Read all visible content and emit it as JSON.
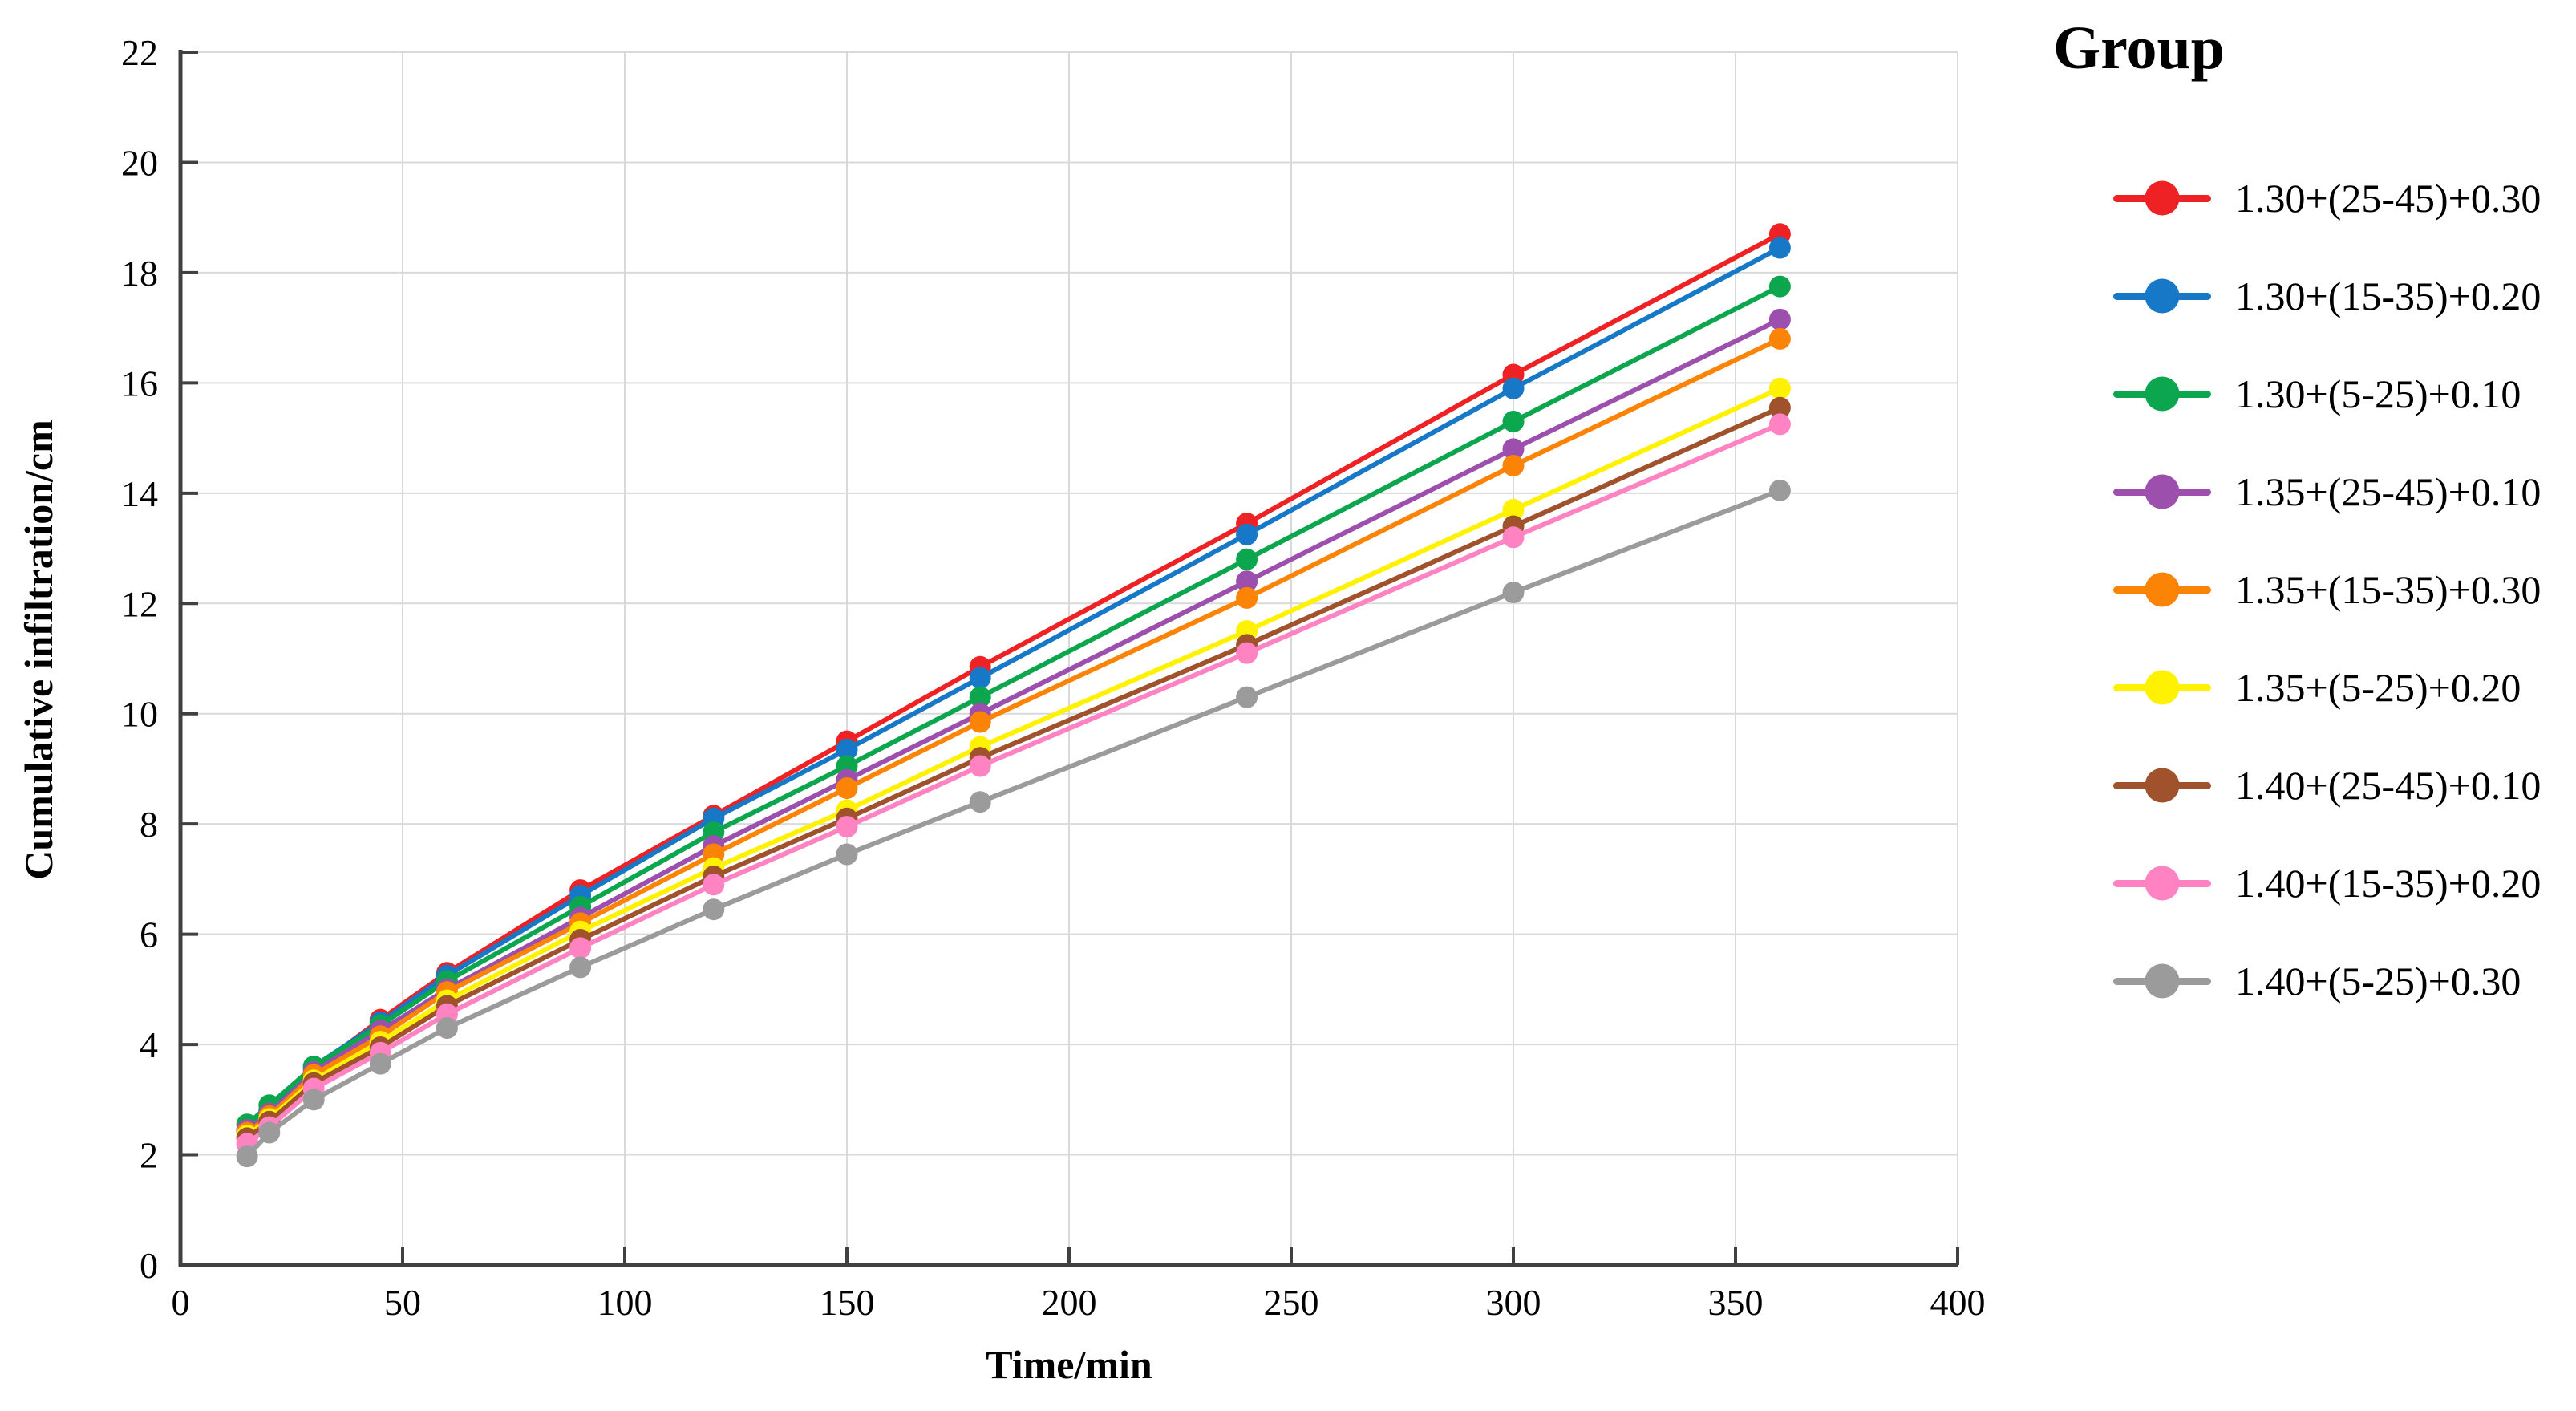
{
  "chart_data": {
    "type": "line",
    "title": "",
    "xlabel": "Time/min",
    "ylabel": "Cumulative infiltration/cm",
    "legend_title": "Group",
    "legend_position": "right",
    "grid": true,
    "grid_color": "#d9d9d9",
    "axis_color": "#404040",
    "text_color": "#000000",
    "xlim": [
      0,
      400
    ],
    "ylim": [
      0,
      22
    ],
    "x_ticks": [
      0,
      50,
      100,
      150,
      200,
      250,
      300,
      350,
      400
    ],
    "y_ticks": [
      0,
      2,
      4,
      6,
      8,
      10,
      12,
      14,
      16,
      18,
      20,
      22
    ],
    "x": [
      15,
      20,
      30,
      45,
      60,
      90,
      120,
      150,
      180,
      240,
      300,
      360
    ],
    "series": [
      {
        "name": "1.30+(25-45)+0.30",
        "color": "#ee2224",
        "values": [
          2.45,
          2.8,
          3.55,
          4.45,
          5.3,
          6.8,
          8.15,
          9.5,
          10.85,
          13.45,
          16.15,
          18.7
        ]
      },
      {
        "name": "1.30+(15-35)+0.20",
        "color": "#1878c8",
        "values": [
          2.45,
          2.8,
          3.6,
          4.4,
          5.25,
          6.7,
          8.1,
          9.35,
          10.65,
          13.25,
          15.9,
          18.45
        ]
      },
      {
        "name": "1.30+(5-25)+0.10",
        "color": "#0ca64e",
        "values": [
          2.55,
          2.9,
          3.6,
          4.35,
          5.15,
          6.5,
          7.85,
          9.05,
          10.3,
          12.8,
          15.3,
          17.75
        ]
      },
      {
        "name": "1.35+(25-45)+0.10",
        "color": "#9d4fae",
        "values": [
          2.45,
          2.75,
          3.5,
          4.25,
          5.0,
          6.3,
          7.6,
          8.8,
          10.0,
          12.4,
          14.8,
          17.15
        ]
      },
      {
        "name": "1.35+(15-35)+0.30",
        "color": "#fb8306",
        "values": [
          2.4,
          2.7,
          3.45,
          4.15,
          4.95,
          6.2,
          7.45,
          8.65,
          9.85,
          12.1,
          14.5,
          16.8
        ]
      },
      {
        "name": "1.35+(5-25)+0.20",
        "color": "#fff200",
        "values": [
          2.35,
          2.65,
          3.35,
          4.05,
          4.8,
          6.05,
          7.2,
          8.25,
          9.4,
          11.5,
          13.7,
          15.9
        ]
      },
      {
        "name": "1.40+(25-45)+0.10",
        "color": "#a0522d",
        "values": [
          2.3,
          2.6,
          3.3,
          3.95,
          4.7,
          5.9,
          7.05,
          8.1,
          9.2,
          11.25,
          13.4,
          15.55
        ]
      },
      {
        "name": "1.40+(15-35)+0.20",
        "color": "#ff82c3",
        "values": [
          2.2,
          2.5,
          3.2,
          3.85,
          4.55,
          5.75,
          6.9,
          7.95,
          9.05,
          11.1,
          13.2,
          15.25
        ]
      },
      {
        "name": "1.40+(5-25)+0.30",
        "color": "#9b9b9b",
        "values": [
          1.97,
          2.4,
          3.0,
          3.65,
          4.3,
          5.4,
          6.45,
          7.45,
          8.4,
          10.3,
          12.2,
          14.05
        ]
      }
    ]
  }
}
